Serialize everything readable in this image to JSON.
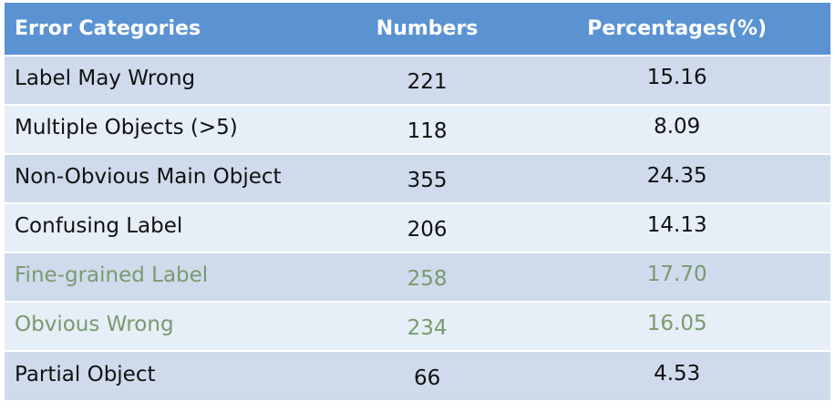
{
  "table": {
    "headers": [
      "Error Categories",
      "Numbers",
      "Percentages(%)"
    ],
    "rows": [
      {
        "category": "Label May Wrong",
        "number": "221",
        "percentage": "15.16"
      },
      {
        "category": "Multiple Objects (>5)",
        "number": "118",
        "percentage": "8.09"
      },
      {
        "category": "Non-Obvious Main Object",
        "number": "355",
        "percentage": "24.35"
      },
      {
        "category": "Confusing Label",
        "number": "206",
        "percentage": "14.13"
      },
      {
        "category": "Fine-grained Label",
        "number": "258",
        "percentage": "17.70"
      },
      {
        "category": "Obvious Wrong",
        "number": "234",
        "percentage": "16.05"
      },
      {
        "category": "Partial Object",
        "number": "66",
        "percentage": "4.53"
      }
    ]
  },
  "colors": {
    "header_bg": "#5b93d2",
    "row_odd_bg": "#cfdbec",
    "row_even_bg": "#e6eef7",
    "muted_text": "#7a9a6e"
  }
}
